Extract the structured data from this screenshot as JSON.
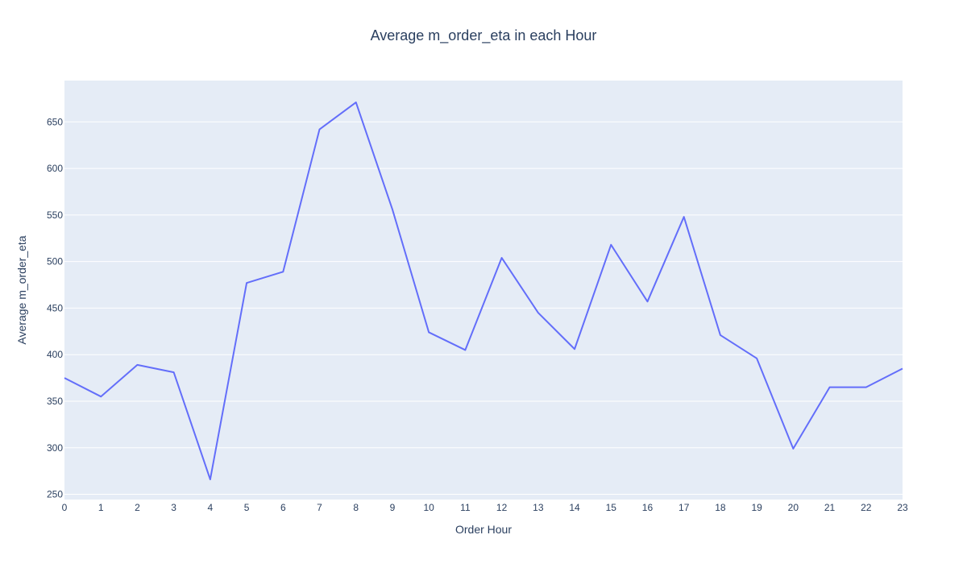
{
  "chart_data": {
    "type": "line",
    "title": "Average m_order_eta in each Hour",
    "xlabel": "Order Hour",
    "ylabel": "Average m_order_eta",
    "x": [
      0,
      1,
      2,
      3,
      4,
      5,
      6,
      7,
      8,
      9,
      10,
      11,
      12,
      13,
      14,
      15,
      16,
      17,
      18,
      19,
      20,
      21,
      22,
      23
    ],
    "x_tick_labels": [
      "0",
      "1",
      "2",
      "3",
      "4",
      "5",
      "6",
      "7",
      "8",
      "9",
      "10",
      "11",
      "12",
      "13",
      "14",
      "15",
      "16",
      "17",
      "18",
      "19",
      "20",
      "21",
      "22",
      "23"
    ],
    "series": [
      {
        "values": [
          375,
          355,
          389,
          381,
          266,
          477,
          489,
          642,
          671,
          556,
          424,
          405,
          504,
          445,
          406,
          518,
          457,
          548,
          421,
          396,
          299,
          365,
          365,
          385
        ]
      }
    ],
    "xlim": [
      0,
      23
    ],
    "ylim": [
      244.4,
      694.4
    ],
    "y_ticks": [
      250,
      300,
      350,
      400,
      450,
      500,
      550,
      600,
      650
    ],
    "y_tick_labels": [
      "250",
      "300",
      "350",
      "400",
      "450",
      "500",
      "550",
      "600",
      "650"
    ],
    "grid": true,
    "legend": "none",
    "colors": {
      "line": "#636efa",
      "plot_background": "#e5ecf6",
      "grid": "#ffffff",
      "text": "#2a3f5f"
    }
  }
}
